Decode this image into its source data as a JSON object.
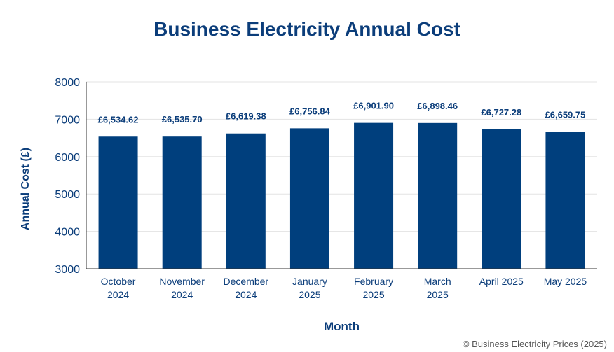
{
  "chart_data": {
    "type": "bar",
    "title": "Business Electricity Annual Cost",
    "xlabel": "Month",
    "ylabel": "Annual Cost (£)",
    "categories": [
      [
        "October",
        "2024"
      ],
      [
        "November",
        "2024"
      ],
      [
        "December",
        "2024"
      ],
      [
        "January",
        "2025"
      ],
      [
        "February",
        "2025"
      ],
      [
        "March",
        "2025"
      ],
      [
        "April 2025"
      ],
      [
        "May 2025"
      ]
    ],
    "values": [
      6534.62,
      6535.7,
      6619.38,
      6756.84,
      6901.9,
      6898.46,
      6727.28,
      6659.75
    ],
    "data_labels": [
      "£6,534.62",
      "£6,535.70",
      "£6,619.38",
      "£6,756.84",
      "£6,901.90",
      "£6,898.46",
      "£6,727.28",
      "£6,659.75"
    ],
    "ylim": [
      3000,
      8000
    ],
    "yticks": [
      3000,
      4000,
      5000,
      6000,
      7000,
      8000
    ],
    "grid": true,
    "legend": "none",
    "bar_color": "#003f7d",
    "text_color": "#0b3d7a"
  },
  "footer": "© Business Electricity Prices (2025)"
}
